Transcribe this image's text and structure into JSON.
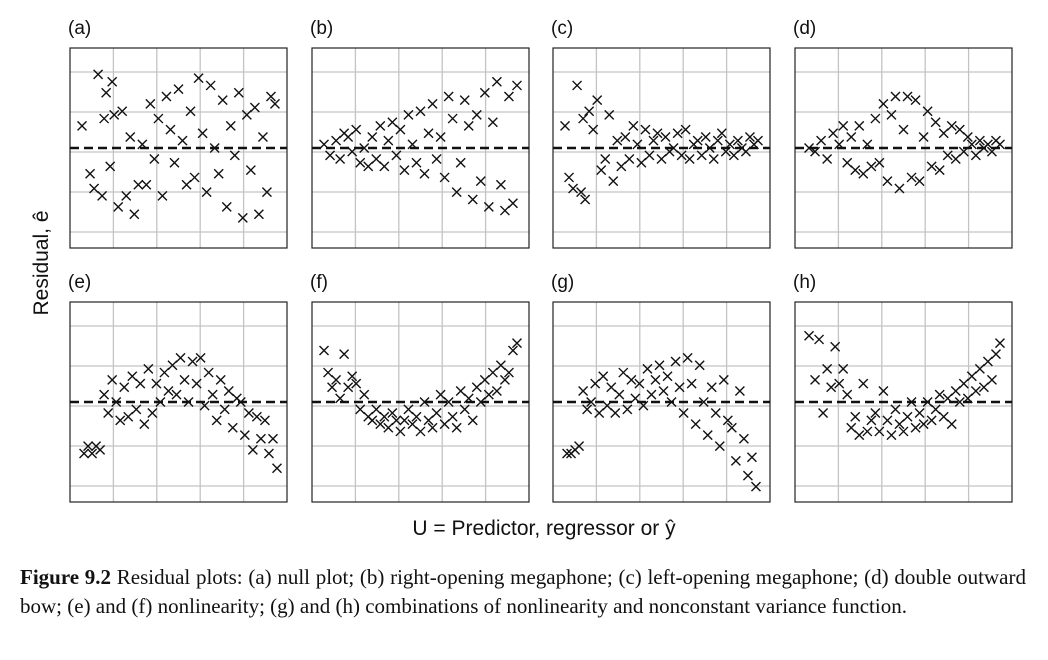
{
  "figure": {
    "ylabel": "Residual, ê",
    "xlabel": "U = Predictor, regressor or ŷ",
    "caption_label": "Figure 9.2",
    "caption_text": " Residual plots: (a) null plot; (b) right-opening megaphone; (c) left-opening megaphone; (d) double outward bow; (e) and (f) nonlinearity; (g) and (h) combinations of nonlinearity and nonconstant variance function."
  },
  "chart_data": [
    {
      "type": "scatter",
      "label": "(a)",
      "description": "null plot",
      "grid": true,
      "reference_line": 0,
      "marker": "x",
      "xlim": [
        0,
        1
      ],
      "ylim": [
        -2.5,
        2.5
      ],
      "x": [
        0.02,
        0.06,
        0.08,
        0.1,
        0.12,
        0.13,
        0.14,
        0.16,
        0.17,
        0.18,
        0.2,
        0.22,
        0.24,
        0.26,
        0.28,
        0.3,
        0.32,
        0.34,
        0.36,
        0.38,
        0.4,
        0.42,
        0.44,
        0.46,
        0.48,
        0.5,
        0.52,
        0.54,
        0.56,
        0.58,
        0.6,
        0.62,
        0.64,
        0.66,
        0.68,
        0.7,
        0.72,
        0.74,
        0.76,
        0.78,
        0.8,
        0.82,
        0.84,
        0.86,
        0.88,
        0.9,
        0.92,
        0.94,
        0.96,
        0.98
      ],
      "y": [
        0.6,
        -0.7,
        -1.1,
        2.0,
        -1.3,
        0.8,
        1.5,
        -0.5,
        1.8,
        0.9,
        -1.6,
        1.0,
        -1.3,
        0.3,
        -1.8,
        -1.0,
        0.1,
        -1.0,
        1.2,
        -0.3,
        0.8,
        -1.3,
        1.4,
        0.5,
        -0.4,
        1.6,
        0.2,
        -1.0,
        1.0,
        -0.8,
        1.9,
        0.4,
        -1.2,
        1.7,
        0.0,
        -0.7,
        1.3,
        -1.6,
        0.6,
        -0.2,
        1.5,
        -1.9,
        0.9,
        -0.6,
        1.1,
        -1.8,
        0.3,
        -1.2,
        1.4,
        1.2
      ]
    },
    {
      "type": "scatter",
      "label": "(b)",
      "description": "right-opening megaphone",
      "grid": true,
      "reference_line": 0,
      "marker": "x",
      "xlim": [
        0,
        1
      ],
      "ylim": [
        -2.5,
        2.5
      ],
      "x": [
        0.02,
        0.05,
        0.08,
        0.1,
        0.12,
        0.14,
        0.16,
        0.18,
        0.2,
        0.22,
        0.24,
        0.26,
        0.28,
        0.3,
        0.32,
        0.34,
        0.36,
        0.38,
        0.4,
        0.42,
        0.44,
        0.46,
        0.48,
        0.5,
        0.52,
        0.54,
        0.56,
        0.58,
        0.6,
        0.62,
        0.64,
        0.66,
        0.68,
        0.7,
        0.72,
        0.74,
        0.76,
        0.78,
        0.8,
        0.82,
        0.84,
        0.86,
        0.88,
        0.9,
        0.92,
        0.94,
        0.96,
        0.98
      ],
      "y": [
        0.1,
        -0.2,
        0.2,
        -0.3,
        0.4,
        0.3,
        -0.1,
        0.5,
        -0.4,
        0.0,
        -0.5,
        0.3,
        -0.3,
        0.6,
        -0.5,
        0.2,
        0.7,
        -0.2,
        0.5,
        -0.6,
        0.9,
        0.1,
        -0.4,
        1.0,
        -0.7,
        0.4,
        1.2,
        -0.3,
        0.3,
        -0.8,
        1.4,
        0.8,
        -1.2,
        -0.4,
        1.3,
        0.6,
        -1.4,
        0.9,
        -0.9,
        1.5,
        -1.6,
        0.7,
        1.8,
        -1.0,
        -1.7,
        1.4,
        -1.5,
        1.7
      ]
    },
    {
      "type": "scatter",
      "label": "(c)",
      "description": "left-opening megaphone",
      "grid": true,
      "reference_line": 0,
      "marker": "x",
      "xlim": [
        0,
        1
      ],
      "ylim": [
        -2.5,
        2.5
      ],
      "x": [
        0.02,
        0.04,
        0.06,
        0.08,
        0.1,
        0.11,
        0.12,
        0.14,
        0.16,
        0.18,
        0.2,
        0.22,
        0.24,
        0.26,
        0.28,
        0.3,
        0.32,
        0.34,
        0.36,
        0.38,
        0.4,
        0.42,
        0.44,
        0.46,
        0.48,
        0.5,
        0.52,
        0.54,
        0.56,
        0.58,
        0.6,
        0.62,
        0.64,
        0.66,
        0.68,
        0.7,
        0.72,
        0.74,
        0.76,
        0.78,
        0.8,
        0.82,
        0.84,
        0.86,
        0.88,
        0.9,
        0.92,
        0.94,
        0.96,
        0.98
      ],
      "y": [
        0.6,
        -0.8,
        -1.1,
        1.7,
        -1.2,
        0.8,
        -1.4,
        1.0,
        0.5,
        1.3,
        -0.6,
        -0.3,
        0.9,
        -0.9,
        0.2,
        -0.5,
        0.3,
        -0.3,
        0.6,
        0.1,
        -0.4,
        0.5,
        -0.2,
        0.2,
        0.4,
        -0.3,
        0.3,
        -0.1,
        0.0,
        0.4,
        -0.2,
        0.5,
        -0.3,
        0.1,
        0.2,
        -0.2,
        0.3,
        0.0,
        -0.3,
        0.2,
        0.4,
        -0.1,
        0.1,
        -0.2,
        0.2,
        0.0,
        -0.1,
        0.3,
        0.1,
        0.2
      ]
    },
    {
      "type": "scatter",
      "label": "(d)",
      "description": "double outward bow",
      "grid": true,
      "reference_line": 0,
      "marker": "x",
      "xlim": [
        0,
        1
      ],
      "ylim": [
        -2.5,
        2.5
      ],
      "x": [
        0.03,
        0.06,
        0.09,
        0.12,
        0.15,
        0.18,
        0.2,
        0.22,
        0.24,
        0.26,
        0.28,
        0.3,
        0.32,
        0.34,
        0.36,
        0.38,
        0.4,
        0.42,
        0.44,
        0.46,
        0.48,
        0.5,
        0.52,
        0.54,
        0.56,
        0.58,
        0.6,
        0.62,
        0.64,
        0.66,
        0.68,
        0.7,
        0.72,
        0.74,
        0.76,
        0.78,
        0.8,
        0.82,
        0.84,
        0.86,
        0.88,
        0.9,
        0.92,
        0.94,
        0.96,
        0.98
      ],
      "y": [
        0.0,
        -0.1,
        0.2,
        -0.3,
        0.4,
        0.1,
        0.6,
        -0.4,
        0.3,
        -0.6,
        0.6,
        -0.7,
        0.1,
        -0.5,
        0.8,
        -0.4,
        1.2,
        -0.9,
        0.9,
        1.4,
        -1.1,
        0.5,
        1.4,
        -0.8,
        1.3,
        -0.9,
        0.3,
        1.0,
        -0.5,
        0.7,
        -0.6,
        0.4,
        -0.2,
        0.6,
        -0.3,
        0.5,
        -0.1,
        0.3,
        0.1,
        -0.2,
        0.2,
        0.0,
        0.1,
        -0.1,
        0.2,
        0.1
      ]
    },
    {
      "type": "scatter",
      "label": "(e)",
      "description": "nonlinearity",
      "grid": true,
      "reference_line": 0,
      "marker": "x",
      "xlim": [
        0,
        1
      ],
      "ylim": [
        -2.5,
        2.5
      ],
      "x": [
        0.03,
        0.05,
        0.07,
        0.09,
        0.11,
        0.13,
        0.15,
        0.17,
        0.19,
        0.21,
        0.23,
        0.25,
        0.27,
        0.29,
        0.31,
        0.33,
        0.35,
        0.37,
        0.39,
        0.41,
        0.43,
        0.45,
        0.47,
        0.49,
        0.51,
        0.53,
        0.55,
        0.57,
        0.59,
        0.61,
        0.63,
        0.65,
        0.67,
        0.69,
        0.71,
        0.73,
        0.75,
        0.77,
        0.79,
        0.81,
        0.83,
        0.85,
        0.87,
        0.89,
        0.91,
        0.93,
        0.95,
        0.97,
        0.99
      ],
      "y": [
        -1.4,
        -1.2,
        -1.4,
        -1.2,
        -1.3,
        0.2,
        -0.3,
        0.6,
        0.0,
        -0.5,
        0.4,
        -0.4,
        0.7,
        -0.2,
        0.5,
        -0.6,
        0.9,
        -0.3,
        0.5,
        0.0,
        0.8,
        0.3,
        1.0,
        0.2,
        1.2,
        0.6,
        0.0,
        1.1,
        0.5,
        1.2,
        -0.1,
        0.8,
        0.2,
        -0.5,
        0.6,
        -0.2,
        0.3,
        -0.7,
        0.1,
        0.0,
        -0.9,
        -0.3,
        -1.3,
        -0.4,
        -1.0,
        -0.5,
        -1.4,
        -1.0,
        -1.8
      ]
    },
    {
      "type": "scatter",
      "label": "(f)",
      "description": "nonlinearity",
      "grid": true,
      "reference_line": 0,
      "marker": "x",
      "xlim": [
        0,
        1
      ],
      "ylim": [
        -2.5,
        2.5
      ],
      "x": [
        0.02,
        0.04,
        0.06,
        0.08,
        0.1,
        0.12,
        0.14,
        0.16,
        0.18,
        0.2,
        0.22,
        0.24,
        0.26,
        0.28,
        0.3,
        0.32,
        0.34,
        0.36,
        0.38,
        0.4,
        0.42,
        0.44,
        0.46,
        0.48,
        0.5,
        0.52,
        0.54,
        0.56,
        0.58,
        0.6,
        0.62,
        0.64,
        0.66,
        0.68,
        0.7,
        0.72,
        0.74,
        0.76,
        0.78,
        0.8,
        0.82,
        0.84,
        0.86,
        0.88,
        0.9,
        0.92,
        0.94,
        0.96,
        0.98
      ],
      "y": [
        1.4,
        0.8,
        0.4,
        0.6,
        0.1,
        1.3,
        0.4,
        0.7,
        0.5,
        -0.2,
        0.2,
        -0.4,
        -0.5,
        -0.2,
        -0.6,
        -0.4,
        -0.7,
        -0.3,
        -0.5,
        -0.8,
        -0.5,
        -0.2,
        -0.6,
        -0.4,
        -0.8,
        0.0,
        -0.5,
        -0.7,
        -0.3,
        0.2,
        -0.6,
        0.0,
        -0.4,
        -0.7,
        0.3,
        -0.2,
        0.1,
        -0.5,
        0.4,
        0.0,
        0.6,
        0.2,
        0.8,
        0.3,
        1.0,
        0.6,
        0.8,
        1.4,
        1.6
      ]
    },
    {
      "type": "scatter",
      "label": "(g)",
      "description": "combination of nonlinearity and nonconstant variance",
      "grid": true,
      "reference_line": 0,
      "marker": "x",
      "xlim": [
        0,
        1
      ],
      "ylim": [
        -2.5,
        2.5
      ],
      "x": [
        0.03,
        0.05,
        0.07,
        0.09,
        0.11,
        0.13,
        0.15,
        0.17,
        0.19,
        0.21,
        0.23,
        0.25,
        0.27,
        0.29,
        0.31,
        0.33,
        0.35,
        0.37,
        0.39,
        0.41,
        0.43,
        0.45,
        0.47,
        0.49,
        0.51,
        0.53,
        0.55,
        0.57,
        0.59,
        0.61,
        0.63,
        0.65,
        0.67,
        0.69,
        0.71,
        0.73,
        0.75,
        0.77,
        0.79,
        0.81,
        0.83,
        0.85,
        0.87,
        0.89,
        0.91,
        0.93,
        0.95,
        0.97
      ],
      "y": [
        -1.4,
        -1.4,
        -1.3,
        -1.2,
        0.3,
        -0.2,
        0.0,
        0.5,
        -0.3,
        0.7,
        -0.1,
        0.4,
        -0.3,
        0.2,
        0.8,
        -0.2,
        0.6,
        0.1,
        0.5,
        -0.1,
        0.9,
        0.2,
        0.6,
        1.0,
        0.3,
        0.7,
        0.0,
        1.1,
        0.4,
        -0.3,
        1.2,
        0.5,
        -0.6,
        1.0,
        0.0,
        -0.9,
        0.4,
        -0.3,
        -1.2,
        0.6,
        -0.5,
        -0.7,
        -1.6,
        0.3,
        -1.0,
        -2.0,
        -1.5,
        -2.3
      ]
    },
    {
      "type": "scatter",
      "label": "(h)",
      "description": "combination of nonlinearity and nonconstant variance",
      "grid": true,
      "reference_line": 0,
      "marker": "x",
      "xlim": [
        0,
        1
      ],
      "ylim": [
        -2.5,
        2.5
      ],
      "x": [
        0.03,
        0.06,
        0.08,
        0.1,
        0.12,
        0.14,
        0.16,
        0.18,
        0.2,
        0.22,
        0.24,
        0.26,
        0.28,
        0.3,
        0.32,
        0.34,
        0.36,
        0.38,
        0.4,
        0.42,
        0.44,
        0.46,
        0.48,
        0.5,
        0.52,
        0.54,
        0.56,
        0.58,
        0.6,
        0.62,
        0.64,
        0.66,
        0.68,
        0.7,
        0.72,
        0.74,
        0.76,
        0.78,
        0.8,
        0.82,
        0.84,
        0.86,
        0.88,
        0.9,
        0.92,
        0.94,
        0.96,
        0.98
      ],
      "y": [
        1.8,
        0.6,
        1.7,
        -0.3,
        0.9,
        0.4,
        1.5,
        0.5,
        0.9,
        0.2,
        -0.7,
        -0.4,
        -0.9,
        0.5,
        -0.8,
        -0.5,
        -0.3,
        -0.8,
        0.3,
        -0.5,
        -0.9,
        -0.2,
        -0.6,
        -0.8,
        -0.4,
        0.0,
        -0.7,
        -0.3,
        -0.6,
        0.0,
        -0.5,
        -0.2,
        0.2,
        -0.4,
        0.1,
        -0.6,
        0.3,
        0.0,
        0.5,
        0.1,
        0.7,
        0.3,
        0.9,
        0.4,
        1.1,
        0.6,
        1.3,
        1.6
      ]
    }
  ]
}
